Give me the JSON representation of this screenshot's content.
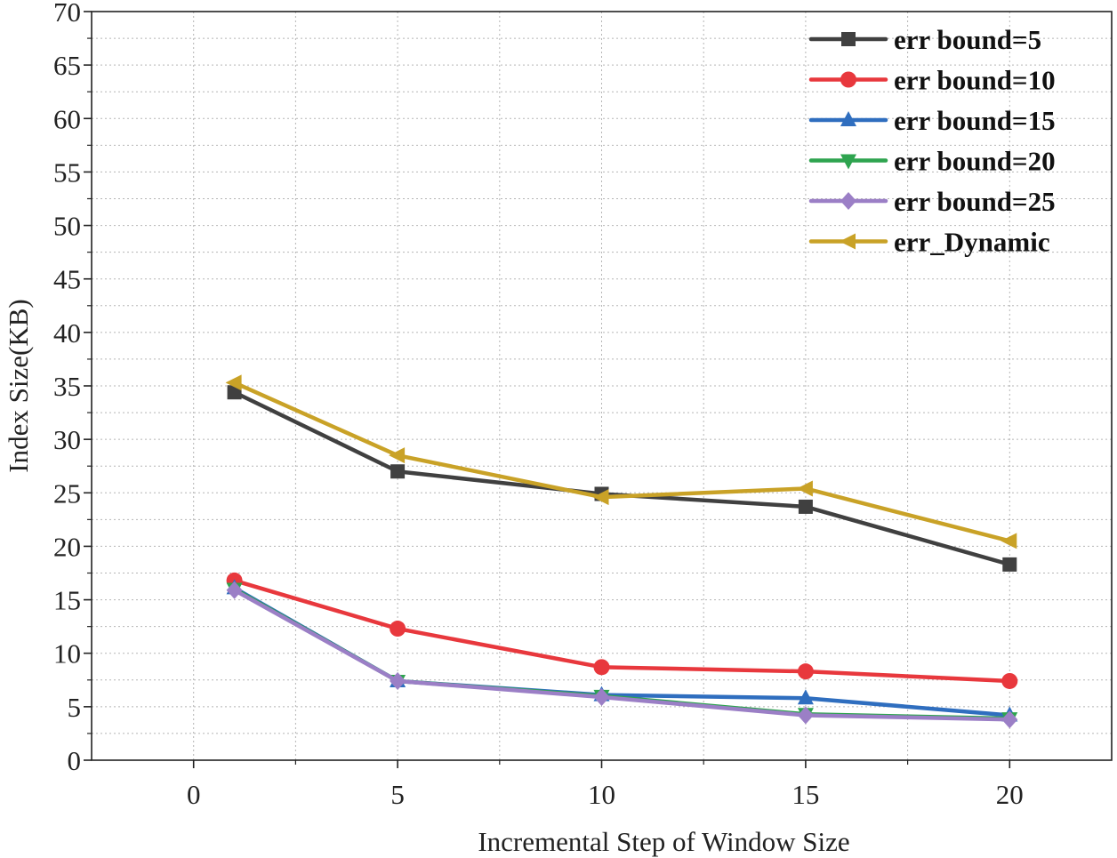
{
  "chart_data": {
    "type": "line",
    "title": "",
    "xlabel": "Incremental Step of Window Size",
    "ylabel": "Index Size(KB)",
    "xlim": [
      -2.5,
      22.5
    ],
    "ylim": [
      0,
      70
    ],
    "x_ticks": [
      0,
      5,
      10,
      15,
      20
    ],
    "y_ticks": [
      0,
      5,
      10,
      15,
      20,
      25,
      30,
      35,
      40,
      45,
      50,
      55,
      60,
      65,
      70
    ],
    "x_tick_labels": [
      "0",
      "5",
      "10",
      "15",
      "20"
    ],
    "y_tick_labels": [
      "0",
      "5",
      "10",
      "15",
      "20",
      "25",
      "30",
      "35",
      "40",
      "45",
      "50",
      "55",
      "60",
      "65",
      "70"
    ],
    "grid": true,
    "legend_position": "top-right",
    "x": [
      1,
      5,
      10,
      15,
      20
    ],
    "series": [
      {
        "name": "err bound=5",
        "color": "#404040",
        "marker": "square",
        "values": [
          34.4,
          27.0,
          24.9,
          23.7,
          18.3
        ]
      },
      {
        "name": "err bound=10",
        "color": "#e8383d",
        "marker": "circle",
        "values": [
          16.8,
          12.3,
          8.7,
          8.3,
          7.4
        ]
      },
      {
        "name": "err bound=15",
        "color": "#2f6ebf",
        "marker": "triangle-up",
        "values": [
          16.1,
          7.4,
          6.1,
          5.8,
          4.2
        ]
      },
      {
        "name": "err bound=20",
        "color": "#2ea44f",
        "marker": "triangle-down",
        "values": [
          16.0,
          7.4,
          6.0,
          4.3,
          3.9
        ]
      },
      {
        "name": "err bound=25",
        "color": "#9b7fc6",
        "marker": "diamond",
        "values": [
          15.9,
          7.4,
          5.9,
          4.2,
          3.8
        ]
      },
      {
        "name": "err_Dynamic",
        "color": "#c9a227",
        "marker": "triangle-left",
        "values": [
          35.3,
          28.5,
          24.6,
          25.4,
          20.5
        ]
      }
    ]
  }
}
